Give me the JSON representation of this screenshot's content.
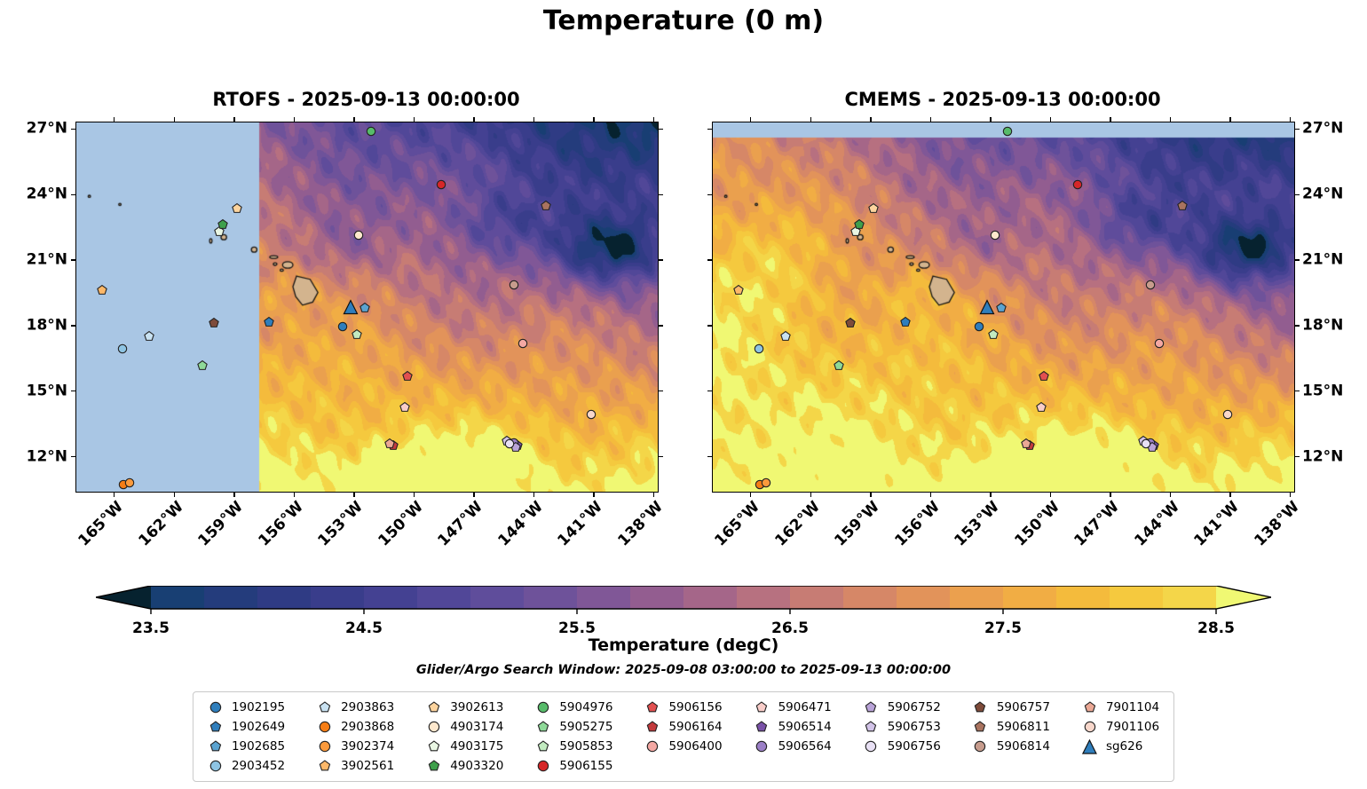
{
  "title": "Temperature (0 m)",
  "chart_data": {
    "type": "heatmap",
    "description": "Two-panel filled-contour sea-surface temperature comparison (RTOFS vs CMEMS) over the Hawaii region with Argo float and glider positions overlaid.",
    "panels": [
      {
        "id": "rtofs",
        "title": "RTOFS - 2025-09-13 00:00:00",
        "masked_region": "west of 157.75W shown as no-data light blue"
      },
      {
        "id": "cmems",
        "title": "CMEMS - 2025-09-13 00:00:00",
        "masked_region": "north of 26.62N shown as no-data light blue"
      }
    ],
    "axes": {
      "lon_range": [
        -166.9,
        -137.8
      ],
      "lat_range": [
        10.4,
        27.3
      ],
      "x_tick_values": [
        -165,
        -162,
        -159,
        -156,
        -153,
        -150,
        -147,
        -144,
        -141,
        -138
      ],
      "x_tick_labels": [
        "165°W",
        "162°W",
        "159°W",
        "156°W",
        "153°W",
        "150°W",
        "147°W",
        "144°W",
        "141°W",
        "138°W"
      ],
      "y_tick_values": [
        27,
        24,
        21,
        18,
        15,
        12
      ],
      "y_tick_labels": [
        "27°N",
        "24°N",
        "21°N",
        "18°N",
        "15°N",
        "12°N"
      ]
    },
    "colorbar": {
      "label": "Temperature (degC)",
      "tick_values": [
        23.5,
        24.5,
        25.5,
        26.5,
        27.5,
        28.5
      ],
      "tick_labels": [
        "23.5",
        "24.5",
        "25.5",
        "26.5",
        "27.5",
        "28.5"
      ],
      "levels_min": 23.5,
      "levels_max": 28.5,
      "band_step": 0.25,
      "extend": "both",
      "under_color": "#06222f",
      "over_color": "#f0f873"
    },
    "colormap_stops": [
      {
        "v": 23.0,
        "c": "#09283c"
      },
      {
        "v": 23.5,
        "c": "#12406f"
      },
      {
        "v": 24.0,
        "c": "#2a3a80"
      },
      {
        "v": 24.5,
        "c": "#3e3e8f"
      },
      {
        "v": 25.0,
        "c": "#574a9b"
      },
      {
        "v": 25.5,
        "c": "#76549a"
      },
      {
        "v": 26.0,
        "c": "#9c608d"
      },
      {
        "v": 26.5,
        "c": "#c0767b"
      },
      {
        "v": 27.0,
        "c": "#dd8d60"
      },
      {
        "v": 27.5,
        "c": "#efa648"
      },
      {
        "v": 28.0,
        "c": "#f6c238"
      },
      {
        "v": 28.5,
        "c": "#f3dd4e"
      },
      {
        "v": 29.0,
        "c": "#eef56a"
      }
    ],
    "mask_color": "#a9c6e4",
    "land_color": "#d3b48e",
    "subtitle": "Glider/Argo Search Window: 2025-09-08 03:00:00 to 2025-09-13 00:00:00",
    "legend": {
      "entries": [
        {
          "id": "1902195",
          "shape": "circle",
          "color": "#2f7ebc",
          "lon": -153.55,
          "lat": 17.95
        },
        {
          "id": "1902649",
          "shape": "pentagon",
          "color": "#2f7ebc",
          "lon": -157.25,
          "lat": 18.15
        },
        {
          "id": "1902685",
          "shape": "pentagon",
          "color": "#5ba3d0",
          "lon": -152.45,
          "lat": 18.8
        },
        {
          "id": "2903452",
          "shape": "circle",
          "color": "#8ec4e3",
          "lon": -164.6,
          "lat": 16.95
        },
        {
          "id": "2903863",
          "shape": "pentagon",
          "color": "#c9e2f2",
          "lon": -163.25,
          "lat": 17.5
        },
        {
          "id": "2903868",
          "shape": "circle",
          "color": "#f57d15",
          "lon": -164.55,
          "lat": 10.72
        },
        {
          "id": "3902374",
          "shape": "circle",
          "color": "#fb9a3c",
          "lon": -164.25,
          "lat": 10.82
        },
        {
          "id": "3902561",
          "shape": "pentagon",
          "color": "#fdb869",
          "lon": -165.6,
          "lat": 19.62
        },
        {
          "id": "3902613",
          "shape": "pentagon",
          "color": "#fdd49e",
          "lon": -158.85,
          "lat": 23.35
        },
        {
          "id": "4903174",
          "shape": "circle",
          "color": "#fee8cd",
          "lon": -152.75,
          "lat": 22.15
        },
        {
          "id": "4903175",
          "shape": "pentagon",
          "color": "#e9f6e3",
          "lon": -159.75,
          "lat": 22.3
        },
        {
          "id": "4903320",
          "shape": "pentagon",
          "color": "#3fa04c",
          "lon": -159.55,
          "lat": 22.62
        },
        {
          "id": "5904976",
          "shape": "circle",
          "color": "#57bb6a",
          "lon": -152.15,
          "lat": 26.9
        },
        {
          "id": "5905275",
          "shape": "pentagon",
          "color": "#8ed998",
          "lon": -160.6,
          "lat": 16.15
        },
        {
          "id": "5905853",
          "shape": "pentagon",
          "color": "#c2ebc0",
          "lon": -152.85,
          "lat": 17.6
        },
        {
          "id": "5906155",
          "shape": "circle",
          "color": "#d62728",
          "lon": -148.65,
          "lat": 24.45
        },
        {
          "id": "5906156",
          "shape": "pentagon",
          "color": "#e25050",
          "lon": -150.35,
          "lat": 15.68
        },
        {
          "id": "5906164",
          "shape": "pentagon",
          "color": "#c33a3d",
          "lon": -151.05,
          "lat": 12.5
        },
        {
          "id": "5906400",
          "shape": "circle",
          "color": "#f4a8a3",
          "lon": -144.55,
          "lat": 17.2
        },
        {
          "id": "5906471",
          "shape": "pentagon",
          "color": "#f9cdc9",
          "lon": -150.45,
          "lat": 14.25
        },
        {
          "id": "5906514",
          "shape": "pentagon",
          "color": "#7a52a8",
          "lon": -144.8,
          "lat": 12.52
        },
        {
          "id": "5906564",
          "shape": "circle",
          "color": "#9b7fc6",
          "lon": -145.0,
          "lat": 12.62
        },
        {
          "id": "5906752",
          "shape": "pentagon",
          "color": "#b9a3d8",
          "lon": -144.9,
          "lat": 12.42
        },
        {
          "id": "5906753",
          "shape": "pentagon",
          "color": "#d2c3e8",
          "lon": -145.35,
          "lat": 12.72
        },
        {
          "id": "5906756",
          "shape": "circle",
          "color": "#e8e0f4",
          "lon": -145.22,
          "lat": 12.6
        },
        {
          "id": "5906757",
          "shape": "pentagon",
          "color": "#7e4b3a",
          "lon": -160.0,
          "lat": 18.12
        },
        {
          "id": "5906811",
          "shape": "pentagon",
          "color": "#a9735f",
          "lon": -143.4,
          "lat": 23.5
        },
        {
          "id": "5906814",
          "shape": "circle",
          "color": "#c79c8d",
          "lon": -145.0,
          "lat": 19.85
        },
        {
          "id": "7901104",
          "shape": "pentagon",
          "color": "#eba895",
          "lon": -151.2,
          "lat": 12.58
        },
        {
          "id": "7901106",
          "shape": "circle",
          "color": "#f8d7cb",
          "lon": -141.15,
          "lat": 13.95
        },
        {
          "id": "sg626",
          "shape": "triangle",
          "color": "#2f7ebc",
          "lon": -153.15,
          "lat": 18.85
        }
      ],
      "columns": [
        4,
        4,
        4,
        4,
        3,
        3,
        3,
        3,
        3
      ]
    },
    "islands": [
      {
        "name": "hawaii-big-island",
        "polygon": [
          [
            -155.88,
            20.27
          ],
          [
            -155.2,
            20.12
          ],
          [
            -154.81,
            19.52
          ],
          [
            -155.07,
            19.08
          ],
          [
            -155.58,
            18.94
          ],
          [
            -155.92,
            19.33
          ],
          [
            -156.06,
            19.78
          ]
        ]
      },
      {
        "name": "maui",
        "ellipse": [
          -156.32,
          20.78,
          0.26,
          0.15
        ]
      },
      {
        "name": "kahoolawe",
        "ellipse": [
          -156.62,
          20.54,
          0.08,
          0.05
        ]
      },
      {
        "name": "lanai",
        "ellipse": [
          -156.95,
          20.82,
          0.09,
          0.06
        ]
      },
      {
        "name": "molokai",
        "ellipse": [
          -157.02,
          21.14,
          0.2,
          0.06
        ]
      },
      {
        "name": "oahu",
        "ellipse": [
          -158.0,
          21.48,
          0.14,
          0.12
        ]
      },
      {
        "name": "kauai",
        "ellipse": [
          -159.52,
          22.05,
          0.14,
          0.12
        ]
      },
      {
        "name": "niihau",
        "ellipse": [
          -160.17,
          21.88,
          0.06,
          0.1
        ]
      },
      {
        "name": "nw-islet-1",
        "ellipse": [
          -164.72,
          23.55,
          0.06,
          0.04
        ]
      },
      {
        "name": "nw-islet-2",
        "ellipse": [
          -166.25,
          23.92,
          0.06,
          0.04
        ]
      }
    ]
  }
}
